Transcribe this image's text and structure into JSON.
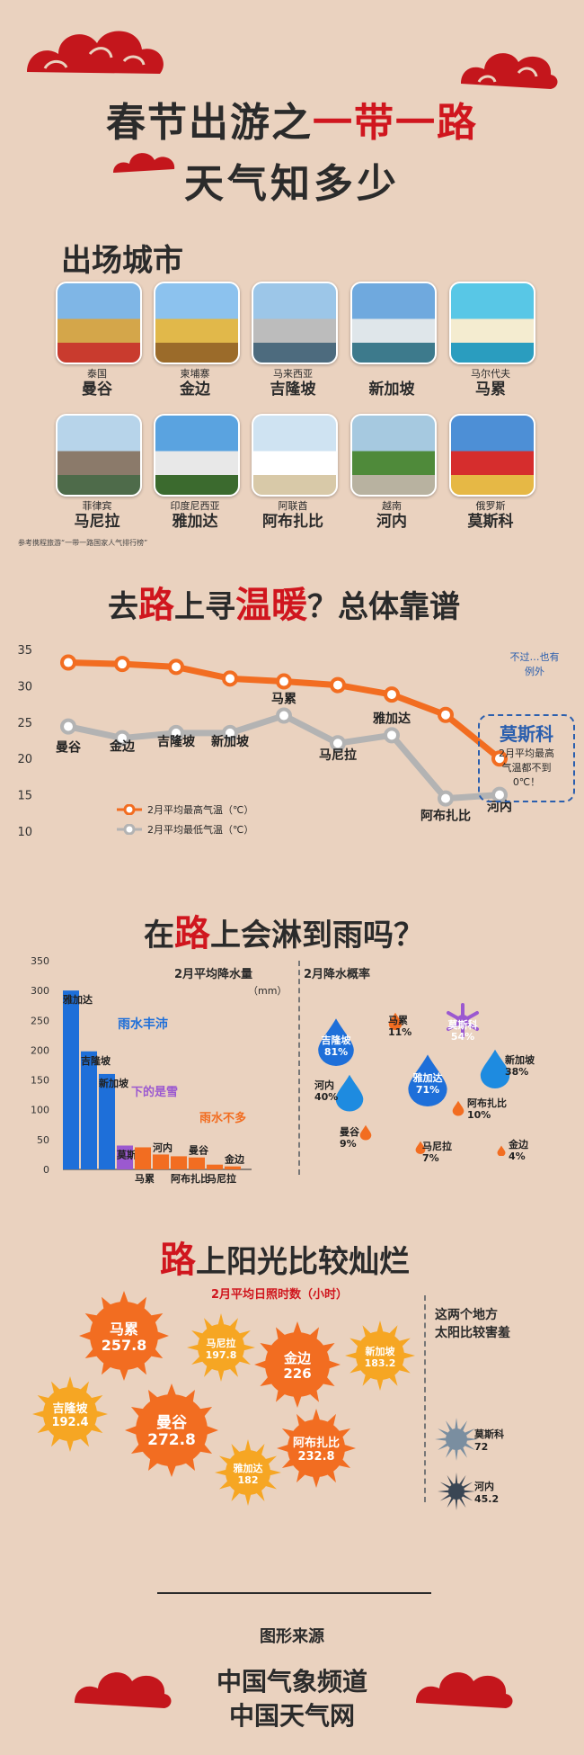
{
  "title": {
    "line1_prefix": "春节出游之",
    "line1_highlight": "一带一路",
    "line2": "天气知多少"
  },
  "cities_section": {
    "title": "出场城市",
    "cities": [
      {
        "country": "泰国",
        "city": "曼谷"
      },
      {
        "country": "柬埔寨",
        "city": "金边"
      },
      {
        "country": "马来西亚",
        "city": "吉隆坡"
      },
      {
        "country": "",
        "city": "新加坡"
      },
      {
        "country": "马尔代夫",
        "city": "马累"
      },
      {
        "country": "菲律宾",
        "city": "马尼拉"
      },
      {
        "country": "印度尼西亚",
        "city": "雅加达"
      },
      {
        "country": "阿联酋",
        "city": "阿布扎比"
      },
      {
        "country": "越南",
        "city": "河内"
      },
      {
        "country": "俄罗斯",
        "city": "莫斯科"
      }
    ],
    "note": "参考携程旅游“一带一路国家人气排行榜”"
  },
  "temp_section": {
    "title_prefix": "去",
    "title_highlight": "路",
    "title_rest": "上寻",
    "title_highlight2": "温暖",
    "title_end": "？总体靠谱",
    "legend_high": "2月平均最高气温（℃）",
    "legend_low": "2月平均最低气温（℃）",
    "callout_top": "不过…也有例外",
    "callout_city": "莫斯科",
    "callout_line1": "2月平均最高",
    "callout_line2": "气温都不到",
    "callout_line3": "0℃！"
  },
  "rain_section": {
    "title_prefix": "在",
    "title_highlight": "路",
    "title_rest": "上会淋到雨吗？",
    "bar_title": "2月平均降水量",
    "bar_unit": "（mm）",
    "prob_title": "2月降水概率",
    "note_rain": "雨水丰沛",
    "note_snow": "下的是雪",
    "note_less": "雨水不多"
  },
  "sun_section": {
    "title_highlight": "路",
    "title_rest": "上阳光比较灿烂",
    "subtitle": "2月平均日照时数（小时）",
    "shy_line1": "这两个地方",
    "shy_line2": "太阳比较害羞"
  },
  "footer": {
    "source_title": "图形来源",
    "line1": "中国气象频道",
    "line2": "中国天气网"
  },
  "colors": {
    "red": "#d0161e",
    "orange": "#f26d21",
    "grey": "#b3b3b3",
    "blue": "#1e6fd9",
    "purple": "#9b59d0",
    "sun_orange": "#f08a1a"
  },
  "chart_data": [
    {
      "type": "line",
      "categories": [
        "曼谷",
        "金边",
        "吉隆坡",
        "新加坡",
        "马累",
        "马尼拉",
        "雅加达",
        "阿布扎比",
        "河内"
      ],
      "series": [
        {
          "name": "2月平均最高气温（℃）",
          "values": [
            33.2,
            33.0,
            32.6,
            31.0,
            30.6,
            30.1,
            28.8,
            26.0,
            20.0
          ]
        },
        {
          "name": "2月平均最低气温（℃）",
          "values": [
            24.4,
            22.8,
            23.5,
            23.5,
            25.9,
            22.1,
            23.2,
            14.5,
            15.0
          ]
        }
      ],
      "ylim": [
        10,
        35
      ],
      "yticks": [
        10,
        15,
        20,
        25,
        30,
        35
      ]
    },
    {
      "type": "bar",
      "title": "2月平均降水量",
      "ylabel": "（mm）",
      "categories": [
        "雅加达",
        "吉隆坡",
        "新加坡",
        "莫斯科",
        "马累",
        "河内",
        "阿布扎比",
        "曼谷",
        "马尼拉",
        "金边"
      ],
      "values": [
        300,
        198,
        160,
        40,
        37,
        25,
        22,
        20,
        8,
        5
      ],
      "ylim": [
        0,
        350
      ],
      "yticks": [
        0,
        50,
        100,
        150,
        200,
        250,
        300,
        350
      ]
    },
    {
      "type": "scatter",
      "title": "2月降水概率",
      "items": [
        {
          "city": "吉隆坡",
          "value": "81%"
        },
        {
          "city": "马累",
          "value": "11%"
        },
        {
          "city": "莫斯科",
          "value": "54%"
        },
        {
          "city": "新加坡",
          "value": "38%"
        },
        {
          "city": "河内",
          "value": "40%"
        },
        {
          "city": "雅加达",
          "value": "71%"
        },
        {
          "city": "阿布扎比",
          "value": "10%"
        },
        {
          "city": "曼谷",
          "value": "9%"
        },
        {
          "city": "马尼拉",
          "value": "7%"
        },
        {
          "city": "金边",
          "value": "4%"
        }
      ]
    },
    {
      "type": "bubble",
      "title": "2月平均日照时数（小时）",
      "items": [
        {
          "city": "马累",
          "value": "257.8"
        },
        {
          "city": "马尼拉",
          "value": "197.8"
        },
        {
          "city": "金边",
          "value": "226"
        },
        {
          "city": "新加坡",
          "value": "183.2"
        },
        {
          "city": "吉隆坡",
          "value": "192.4"
        },
        {
          "city": "曼谷",
          "value": "272.8"
        },
        {
          "city": "阿布扎比",
          "value": "232.8"
        },
        {
          "city": "雅加达",
          "value": "182"
        },
        {
          "city": "莫斯科",
          "value": "72"
        },
        {
          "city": "河内",
          "value": "45.2"
        }
      ]
    }
  ]
}
